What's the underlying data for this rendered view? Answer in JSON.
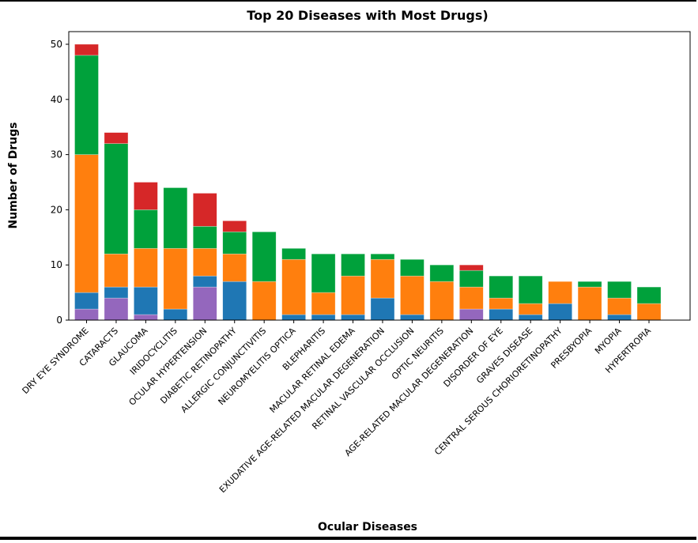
{
  "chart_data": {
    "type": "bar",
    "stacked": true,
    "title": "Top 20 Diseases with Most Drugs)",
    "xlabel": "Ocular Diseases",
    "ylabel": "Number of Drugs",
    "ylim": [
      0,
      52.5
    ],
    "yticks": [
      0,
      10,
      20,
      30,
      40,
      50
    ],
    "grid": false,
    "categories": [
      "DRY EYE SYNDROME",
      "CATARACTS",
      "GLAUCOMA",
      "IRIDOCYCLITIS",
      "OCULAR HYPERTENSION",
      "DIABETIC RETINOPATHY",
      "ALLERGIC CONJUNCTIVITIS",
      "NEUROMYELITIS OPTICA",
      "BLEPHARITIS",
      "MACULAR RETINAL EDEMA",
      "EXUDATIVE AGE-RELATED MACULAR DEGENERATION",
      "RETINAL VASCULAR OCCLUSION",
      "OPTIC NEURITIS",
      "AGE-RELATED MACULAR DEGENERATION",
      "DISORDER OF EYE",
      "GRAVES DISEASE",
      "CENTRAL SEROUS CHORIORETINOPATHY",
      "PRESBYOPIA",
      "MYOPIA",
      "HYPERTROPIA"
    ],
    "series": [
      {
        "name": "purple",
        "color": "#9467bd",
        "values": [
          2,
          4,
          1,
          0,
          6,
          0,
          0,
          0,
          0,
          0,
          0,
          0,
          0,
          2,
          0,
          0,
          0,
          0,
          0,
          0
        ]
      },
      {
        "name": "blue",
        "color": "#1f77b4",
        "values": [
          3,
          2,
          5,
          2,
          2,
          7,
          0,
          1,
          1,
          1,
          4,
          1,
          0,
          0,
          2,
          1,
          3,
          0,
          1,
          0
        ]
      },
      {
        "name": "orange",
        "color": "#ff7f0e",
        "values": [
          25,
          6,
          7,
          11,
          5,
          5,
          7,
          10,
          4,
          7,
          7,
          7,
          7,
          4,
          2,
          2,
          4,
          6,
          3,
          3
        ]
      },
      {
        "name": "green",
        "color": "#00a13b",
        "values": [
          18,
          20,
          7,
          11,
          4,
          4,
          9,
          2,
          7,
          4,
          1,
          3,
          3,
          3,
          4,
          5,
          0,
          1,
          3,
          3
        ]
      },
      {
        "name": "red",
        "color": "#d62728",
        "values": [
          2,
          2,
          5,
          0,
          6,
          2,
          0,
          0,
          0,
          0,
          0,
          0,
          0,
          1,
          0,
          0,
          0,
          0,
          0,
          0
        ]
      }
    ]
  }
}
